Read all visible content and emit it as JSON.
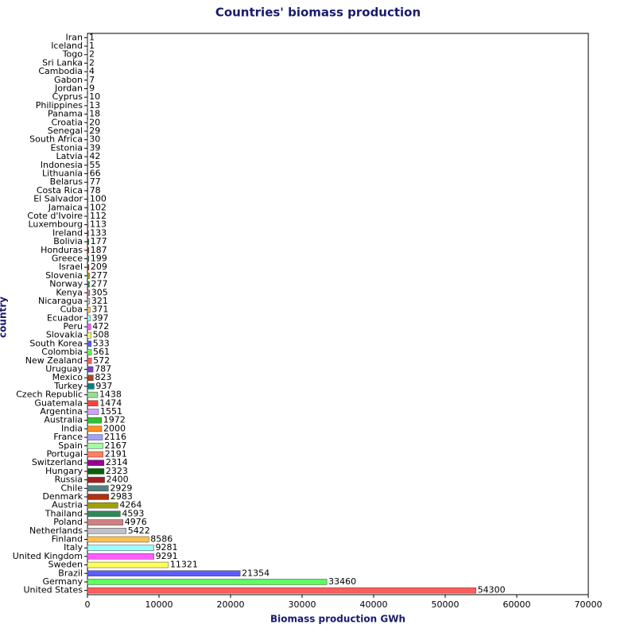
{
  "chart_data": {
    "type": "hbar",
    "title": "Countries' biomass production",
    "x_label": "Biomass production GWh",
    "y_label": "country",
    "categories": [
      "Iran",
      "Iceland",
      "Togo",
      "Sri Lanka",
      "Cambodia",
      "Gabon",
      "Jordan",
      "Cyprus",
      "Philippines",
      "Panama",
      "Croatia",
      "Senegal",
      "South Africa",
      "Estonia",
      "Latvia",
      "Indonesia",
      "Lithuania",
      "Belarus",
      "Costa Rica",
      "El Salvador",
      "Jamaica",
      "Cote d'Ivoire",
      "Luxembourg",
      "Ireland",
      "Bolivia",
      "Honduras",
      "Greece",
      "Israel",
      "Slovenia",
      "Norway",
      "Kenya",
      "Nicaragua",
      "Cuba",
      "Ecuador",
      "Peru",
      "Slovakia",
      "South Korea",
      "Colombia",
      "New Zealand",
      "Uruguay",
      "Mexico",
      "Turkey",
      "Czech Republic",
      "Guatemala",
      "Argentina",
      "Australia",
      "India",
      "France",
      "Spain",
      "Portugal",
      "Switzerland",
      "Hungary",
      "Russia",
      "Chile",
      "Denmark",
      "Austria",
      "Thailand",
      "Poland",
      "Netherlands",
      "Finland",
      "Italy",
      "United Kingdom",
      "Sweden",
      "Brazil",
      "Germany",
      "United States"
    ],
    "values": [
      1,
      1,
      2,
      2,
      4,
      7,
      9,
      10,
      13,
      18,
      20,
      29,
      30,
      39,
      42,
      55,
      66,
      77,
      78,
      100,
      102,
      112,
      113,
      133,
      177,
      187,
      199,
      209,
      277,
      277,
      305,
      321,
      371,
      397,
      472,
      508,
      533,
      561,
      572,
      787,
      823,
      937,
      1438,
      1474,
      1551,
      1972,
      2000,
      2116,
      2167,
      2191,
      2314,
      2323,
      2400,
      2929,
      2983,
      4264,
      4593,
      4976,
      5422,
      8586,
      9281,
      9291,
      11321,
      21354,
      33460,
      54300
    ],
    "palette": [
      "#ff5c5c",
      "#5cff5c",
      "#5c5cff",
      "#ffff5c",
      "#ff5cff",
      "#9cffff",
      "#ffc04c",
      "#c0c0c8",
      "#d08080",
      "#2e8b57",
      "#a0a000",
      "#b03010",
      "#508080",
      "#a02020",
      "#006400",
      "#900090",
      "#ff8060",
      "#a0ffa0",
      "#a0a0ff",
      "#ff9020",
      "#30c030",
      "#d0a0ff",
      "#ff4040",
      "#90e090",
      "#008080",
      "#b04020",
      "#8040c0"
    ],
    "xlim": [
      0,
      70000
    ],
    "xticks": [
      0,
      10000,
      20000,
      30000,
      40000,
      50000,
      60000,
      70000
    ]
  }
}
